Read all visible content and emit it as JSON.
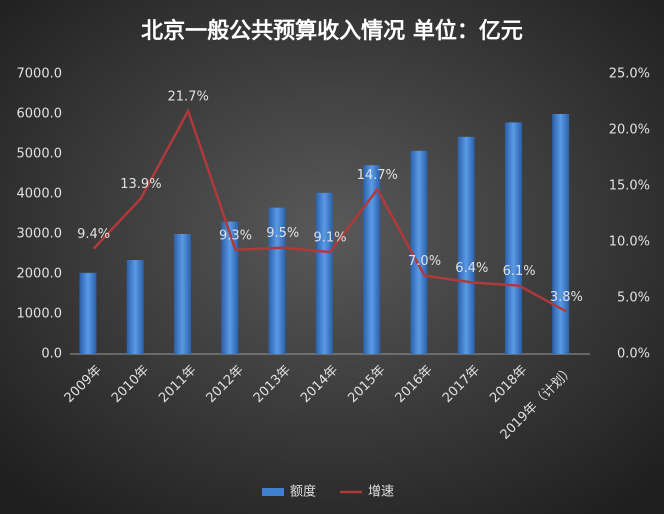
{
  "chart_data": {
    "type": "bar",
    "title": "北京一般公共预算收入情况 单位：亿元",
    "categories": [
      "2009年",
      "2010年",
      "2011年",
      "2012年",
      "2013年",
      "2014年",
      "2015年",
      "2016年",
      "2017年",
      "2018年",
      "2019年（计划）"
    ],
    "series": [
      {
        "name": "额度",
        "color": "#3f7fcf",
        "values": [
          2030,
          2350,
          3000,
          3310,
          3660,
          4030,
          4720,
          5080,
          5430,
          5790,
          6000
        ]
      },
      {
        "name": "增速",
        "color": "#b03a3a",
        "type": "line",
        "axis": "y2",
        "values": [
          9.4,
          13.9,
          21.7,
          9.3,
          9.5,
          9.1,
          14.7,
          7.0,
          6.4,
          6.1,
          3.8
        ],
        "value_labels": [
          "9.4%",
          "13.9%",
          "21.7%",
          "9.3%",
          "9.5%",
          "9.1%",
          "14.7%",
          "7.0%",
          "6.4%",
          "6.1%",
          "3.8%"
        ]
      }
    ],
    "ylim": [
      0,
      7000
    ],
    "yticks": [
      {
        "value": 0,
        "label": "0.0"
      },
      {
        "value": 1000,
        "label": "1000.0"
      },
      {
        "value": 2000,
        "label": "2000.0"
      },
      {
        "value": 3000,
        "label": "3000.0"
      },
      {
        "value": 4000,
        "label": "4000.0"
      },
      {
        "value": 5000,
        "label": "5000.0"
      },
      {
        "value": 6000,
        "label": "6000.0"
      },
      {
        "value": 7000,
        "label": "7000.0"
      }
    ],
    "y2lim": [
      0,
      25
    ],
    "y2ticks": [
      {
        "value": 0,
        "label": "0.0%"
      },
      {
        "value": 5,
        "label": "5.0%"
      },
      {
        "value": 10,
        "label": "10.0%"
      },
      {
        "value": 15,
        "label": "15.0%"
      },
      {
        "value": 20,
        "label": "20.0%"
      },
      {
        "value": 25,
        "label": "25.0%"
      }
    ],
    "grid": false
  }
}
